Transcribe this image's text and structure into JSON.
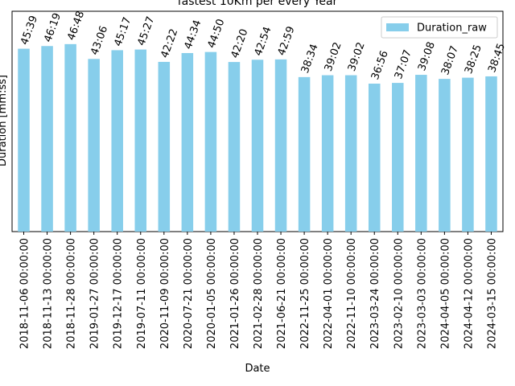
{
  "chart_data": {
    "type": "bar",
    "title": "fastest 10Km per every Year",
    "xlabel": "Date",
    "ylabel": "Duration [mm:ss]",
    "legend": {
      "label": "Duration_raw",
      "placement": "top-right"
    },
    "grid": false,
    "bar_color": "#87ceeb",
    "ylim": [
      0,
      3300
    ],
    "categories": [
      "2018-11-06 00:00:00",
      "2018-11-13 00:00:00",
      "2018-11-28 00:00:00",
      "2019-01-27 00:00:00",
      "2019-12-17 00:00:00",
      "2019-07-11 00:00:00",
      "2020-11-09 00:00:00",
      "2020-07-21 00:00:00",
      "2020-01-05 00:00:00",
      "2021-01-26 00:00:00",
      "2021-02-28 00:00:00",
      "2021-06-21 00:00:00",
      "2022-11-25 00:00:00",
      "2022-04-01 00:00:00",
      "2022-11-10 00:00:00",
      "2023-03-24 00:00:00",
      "2023-02-10 00:00:00",
      "2023-03-03 00:00:00",
      "2024-04-05 00:00:00",
      "2024-04-12 00:00:00",
      "2024-03-15 00:00:00"
    ],
    "series": [
      {
        "name": "Duration_raw",
        "values": [
          2739,
          2779,
          2808,
          2586,
          2717,
          2727,
          2542,
          2674,
          2690,
          2540,
          2574,
          2579,
          2314,
          2342,
          2342,
          2216,
          2227,
          2348,
          2287,
          2305,
          2325
        ],
        "labels": [
          "45:39",
          "46:19",
          "46:48",
          "43:06",
          "45:17",
          "45:27",
          "42:22",
          "44:34",
          "44:50",
          "42:20",
          "42:54",
          "42:59",
          "38:34",
          "39:02",
          "39:02",
          "36:56",
          "37:07",
          "39:08",
          "38:07",
          "38:25",
          "38:45"
        ]
      }
    ]
  }
}
